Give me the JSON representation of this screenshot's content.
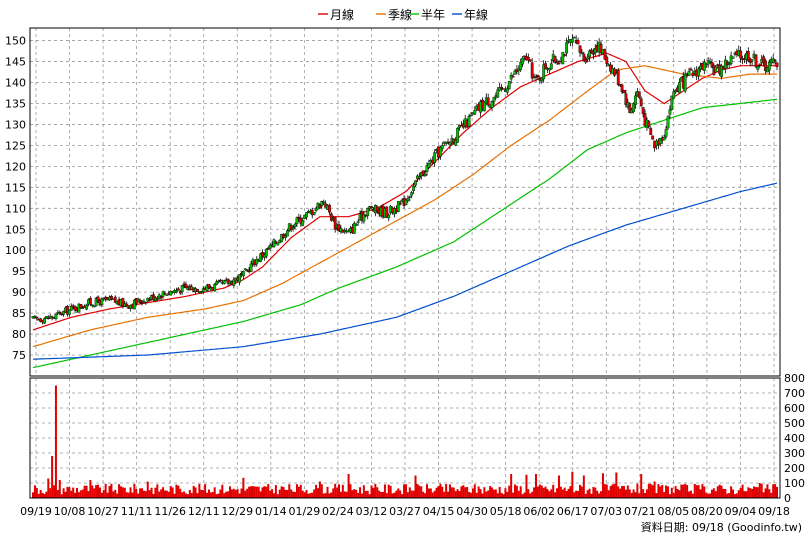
{
  "legend": {
    "items": [
      {
        "label": "月線",
        "color": "#e00000"
      },
      {
        "label": "季線",
        "color": "#e87000"
      },
      {
        "label": "半年",
        "color": "#00c000"
      },
      {
        "label": "年線",
        "color": "#0050d0"
      }
    ]
  },
  "source_label": "資料日期: 09/18 (Goodinfo.tw)",
  "chart_data": [
    {
      "type": "candlestick",
      "title": "",
      "x_tick_labels": [
        "09/19",
        "10/08",
        "10/27",
        "11/11",
        "11/26",
        "12/11",
        "12/29",
        "01/14",
        "01/29",
        "02/24",
        "03/12",
        "03/27",
        "04/15",
        "04/30",
        "05/18",
        "06/02",
        "06/17",
        "07/03",
        "07/21",
        "08/05",
        "08/20",
        "09/04",
        "09/18"
      ],
      "ylim": [
        70,
        153
      ],
      "y_ticks": [
        75,
        80,
        85,
        90,
        95,
        100,
        105,
        110,
        115,
        120,
        125,
        130,
        135,
        140,
        145,
        150
      ],
      "grid": true,
      "legend_position": "top-center",
      "colors": {
        "up": "#00c000",
        "down": "#e00000",
        "line": "#000000"
      },
      "close_anchors": [
        [
          0,
          83.5
        ],
        [
          10,
          84
        ],
        [
          20,
          86
        ],
        [
          30,
          87.5
        ],
        [
          40,
          88
        ],
        [
          50,
          87
        ],
        [
          60,
          88.5
        ],
        [
          70,
          90
        ],
        [
          80,
          91
        ],
        [
          90,
          91
        ],
        [
          100,
          92
        ],
        [
          110,
          94
        ],
        [
          115,
          97
        ],
        [
          125,
          101
        ],
        [
          135,
          106
        ],
        [
          145,
          109
        ],
        [
          152,
          112
        ],
        [
          158,
          106
        ],
        [
          165,
          104
        ],
        [
          175,
          110
        ],
        [
          185,
          109
        ],
        [
          193,
          111
        ],
        [
          203,
          118
        ],
        [
          213,
          124
        ],
        [
          220,
          127
        ],
        [
          228,
          131
        ],
        [
          235,
          135
        ],
        [
          243,
          137
        ],
        [
          250,
          141
        ],
        [
          258,
          146
        ],
        [
          263,
          140
        ],
        [
          268,
          144
        ],
        [
          275,
          146
        ],
        [
          282,
          150
        ],
        [
          288,
          146
        ],
        [
          295,
          149
        ],
        [
          302,
          144
        ],
        [
          308,
          139
        ],
        [
          312,
          133
        ],
        [
          316,
          138
        ],
        [
          320,
          131
        ],
        [
          325,
          125
        ],
        [
          330,
          128
        ],
        [
          335,
          138
        ],
        [
          342,
          141
        ],
        [
          350,
          144
        ],
        [
          358,
          143
        ],
        [
          366,
          146
        ],
        [
          374,
          146.5
        ],
        [
          382,
          144
        ],
        [
          389,
          145
        ]
      ],
      "series": [
        {
          "name": "月線",
          "color": "#e00000",
          "anchors": [
            [
              0,
              81
            ],
            [
              20,
              84
            ],
            [
              40,
              86
            ],
            [
              60,
              87.5
            ],
            [
              80,
              89
            ],
            [
              100,
              91
            ],
            [
              110,
              93
            ],
            [
              120,
              96
            ],
            [
              135,
              103
            ],
            [
              150,
              108
            ],
            [
              165,
              108
            ],
            [
              180,
              110
            ],
            [
              195,
              114
            ],
            [
              210,
              121
            ],
            [
              225,
              128
            ],
            [
              240,
              134
            ],
            [
              255,
              139
            ],
            [
              270,
              142
            ],
            [
              285,
              145
            ],
            [
              300,
              147
            ],
            [
              310,
              145
            ],
            [
              320,
              138
            ],
            [
              330,
              135
            ],
            [
              340,
              138
            ],
            [
              350,
              141
            ],
            [
              360,
              143
            ],
            [
              370,
              144
            ],
            [
              389,
              144
            ]
          ]
        },
        {
          "name": "季線",
          "color": "#e87000",
          "anchors": [
            [
              0,
              77
            ],
            [
              30,
              81
            ],
            [
              60,
              84
            ],
            [
              90,
              86
            ],
            [
              110,
              88
            ],
            [
              130,
              92
            ],
            [
              150,
              97
            ],
            [
              170,
              102
            ],
            [
              190,
              107
            ],
            [
              210,
              112
            ],
            [
              230,
              118
            ],
            [
              250,
              125
            ],
            [
              270,
              131
            ],
            [
              290,
              138
            ],
            [
              305,
              143
            ],
            [
              320,
              144
            ],
            [
              340,
              142
            ],
            [
              360,
              141
            ],
            [
              375,
              142
            ],
            [
              389,
              142
            ]
          ]
        },
        {
          "name": "半年",
          "color": "#00c000",
          "anchors": [
            [
              0,
              72
            ],
            [
              40,
              76
            ],
            [
              80,
              80
            ],
            [
              110,
              83
            ],
            [
              140,
              87
            ],
            [
              160,
              91
            ],
            [
              190,
              96
            ],
            [
              220,
              102
            ],
            [
              250,
              111
            ],
            [
              270,
              117
            ],
            [
              290,
              124
            ],
            [
              310,
              128
            ],
            [
              330,
              131
            ],
            [
              350,
              134
            ],
            [
              370,
              135
            ],
            [
              389,
              136
            ]
          ]
        },
        {
          "name": "年線",
          "color": "#0050d0",
          "anchors": [
            [
              0,
              74
            ],
            [
              60,
              75
            ],
            [
              110,
              77
            ],
            [
              150,
              80
            ],
            [
              190,
              84
            ],
            [
              220,
              89
            ],
            [
              250,
              95
            ],
            [
              280,
              101
            ],
            [
              310,
              106
            ],
            [
              340,
              110
            ],
            [
              370,
              114
            ],
            [
              389,
              116
            ]
          ]
        }
      ]
    },
    {
      "type": "bar",
      "title": "",
      "ylim": [
        0,
        800
      ],
      "y_ticks": [
        0,
        100,
        200,
        300,
        400,
        500,
        600,
        700,
        800
      ],
      "grid": true,
      "color": "#e00000",
      "spikes": [
        [
          8,
          130
        ],
        [
          10,
          280
        ],
        [
          12,
          750
        ],
        [
          14,
          120
        ],
        [
          30,
          120
        ],
        [
          60,
          110
        ],
        [
          110,
          135
        ],
        [
          150,
          110
        ],
        [
          165,
          160
        ],
        [
          200,
          150
        ],
        [
          250,
          160
        ],
        [
          258,
          155
        ],
        [
          263,
          160
        ],
        [
          275,
          150
        ],
        [
          282,
          175
        ],
        [
          288,
          150
        ],
        [
          298,
          165
        ],
        [
          305,
          170
        ],
        [
          318,
          160
        ],
        [
          325,
          110
        ],
        [
          380,
          100
        ]
      ]
    }
  ]
}
